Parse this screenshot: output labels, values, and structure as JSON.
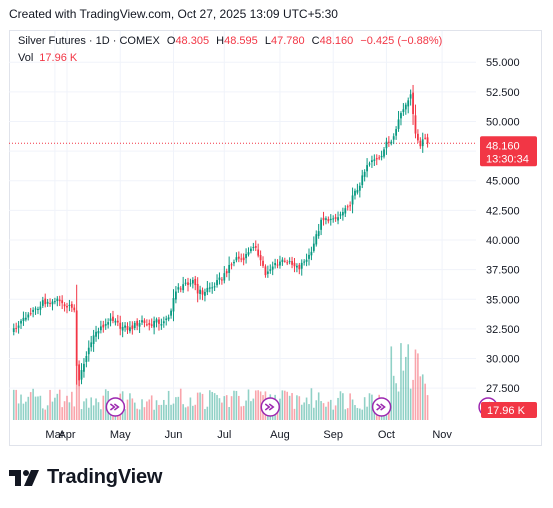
{
  "created_note": "Created with TradingView.com, Oct 27, 2025 13:09 UTC+5:30",
  "legend": {
    "symbol": "Silver Futures · 1D · COMEX",
    "o_label": "O",
    "o_value": "48.305",
    "h_label": "H",
    "h_value": "48.595",
    "l_label": "L",
    "l_value": "47.780",
    "c_label": "C",
    "c_value": "48.160",
    "change": "−0.425 (−0.88%)",
    "vol_label": "Vol",
    "vol_value": "17.96 K"
  },
  "price_badge": {
    "price": "48.160",
    "countdown": "13:30:34"
  },
  "vol_badge": "17.96 K",
  "logo_text": "TradingView",
  "colors": {
    "up": "#089981",
    "down": "#f23645",
    "event_icon": "#9c27b0",
    "accent": "#f23645"
  },
  "chart_data": {
    "type": "candlestick",
    "y_ticks": [
      "55.000",
      "52.500",
      "50.000",
      "47.500",
      "45.000",
      "42.500",
      "40.000",
      "37.500",
      "35.000",
      "32.500",
      "30.000",
      "27.500"
    ],
    "ylim": [
      26.5,
      56.2
    ],
    "x_labels": [
      {
        "label": "Mar",
        "day": -5
      },
      {
        "label": "Apr",
        "day": 0
      },
      {
        "label": "May",
        "day": 22
      },
      {
        "label": "Jun",
        "day": 44
      },
      {
        "label": "Jul",
        "day": 65
      },
      {
        "label": "Aug",
        "day": 88
      },
      {
        "label": "Sep",
        "day": 110
      },
      {
        "label": "Oct",
        "day": 132
      },
      {
        "label": "Nov",
        "day": 155
      }
    ],
    "last_price": 48.16,
    "event_markers": [
      {
        "type": "dividend-arrow",
        "day": 20
      },
      {
        "type": "dividend-arrow",
        "day": 84
      },
      {
        "type": "dividend-arrow",
        "day": 130
      },
      {
        "type": "lightning",
        "day": 174
      }
    ],
    "close_keyframes": [
      [
        -22,
        32.6
      ],
      [
        -18,
        33.2
      ],
      [
        -15,
        33.8
      ],
      [
        -12,
        34.3
      ],
      [
        -10,
        34.8
      ],
      [
        -7,
        34.5
      ],
      [
        -4,
        34.9
      ],
      [
        -2,
        34.6
      ],
      [
        1,
        34.4
      ],
      [
        3,
        34.1
      ],
      [
        4,
        29.5
      ],
      [
        5,
        28.0
      ],
      [
        6,
        28.9
      ],
      [
        8,
        30.2
      ],
      [
        10,
        31.6
      ],
      [
        12,
        32.2
      ],
      [
        15,
        32.7
      ],
      [
        17,
        33.2
      ],
      [
        20,
        33.0
      ],
      [
        23,
        32.6
      ],
      [
        26,
        32.5
      ],
      [
        28,
        32.8
      ],
      [
        31,
        33.2
      ],
      [
        34,
        32.8
      ],
      [
        36,
        33.1
      ],
      [
        40,
        33.0
      ],
      [
        42,
        33.4
      ],
      [
        44,
        35.1
      ],
      [
        46,
        35.9
      ],
      [
        48,
        36.3
      ],
      [
        50,
        36.0
      ],
      [
        52,
        36.7
      ],
      [
        54,
        35.7
      ],
      [
        56,
        35.5
      ],
      [
        58,
        35.9
      ],
      [
        60,
        36.0
      ],
      [
        62,
        36.4
      ],
      [
        64,
        36.8
      ],
      [
        66,
        37.4
      ],
      [
        68,
        37.9
      ],
      [
        70,
        38.5
      ],
      [
        72,
        38.4
      ],
      [
        74,
        38.7
      ],
      [
        76,
        39.4
      ],
      [
        78,
        39.1
      ],
      [
        80,
        38.5
      ],
      [
        82,
        37.1
      ],
      [
        84,
        37.4
      ],
      [
        86,
        38.0
      ],
      [
        88,
        38.2
      ],
      [
        90,
        38.4
      ],
      [
        92,
        38.0
      ],
      [
        94,
        37.7
      ],
      [
        96,
        37.6
      ],
      [
        98,
        38.2
      ],
      [
        100,
        38.7
      ],
      [
        103,
        40.3
      ],
      [
        105,
        41.5
      ],
      [
        108,
        41.8
      ],
      [
        110,
        41.6
      ],
      [
        112,
        41.9
      ],
      [
        114,
        42.3
      ],
      [
        116,
        42.6
      ],
      [
        118,
        43.6
      ],
      [
        120,
        44.3
      ],
      [
        122,
        45.2
      ],
      [
        124,
        46.2
      ],
      [
        126,
        46.6
      ],
      [
        128,
        46.9
      ],
      [
        130,
        47.3
      ],
      [
        132,
        48.1
      ],
      [
        134,
        48.4
      ],
      [
        136,
        49.6
      ],
      [
        138,
        50.7
      ],
      [
        140,
        51.5
      ],
      [
        142,
        52.5
      ],
      [
        143,
        50.4
      ],
      [
        144,
        49.2
      ],
      [
        146,
        47.9
      ],
      [
        147,
        48.5
      ],
      [
        148,
        48.7
      ],
      [
        149,
        48.2
      ]
    ]
  }
}
